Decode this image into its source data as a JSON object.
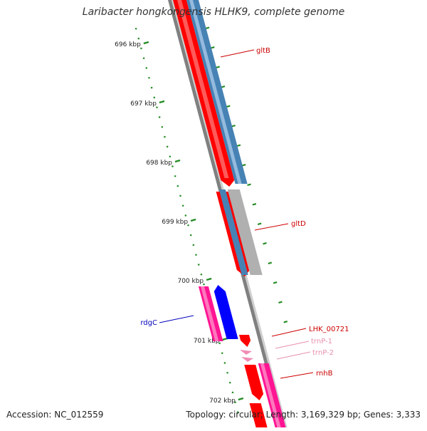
{
  "title": "Laribacter hongkongensis HLHK9, complete genome",
  "accession": "Accession: NC_012559",
  "summary": "Topology: circular; Length: 3,169,329 bp; Genes: 3,333",
  "ruler": {
    "labels": [
      "696 kbp",
      "697 kbp",
      "698 kbp",
      "699 kbp",
      "700 kbp",
      "701 kbp",
      "702 kbp"
    ]
  },
  "genes": [
    {
      "name": "gltB",
      "color": "#cc0000"
    },
    {
      "name": "gltD",
      "color": "#cc0000"
    },
    {
      "name": "rdgC",
      "color": "#0000bb"
    },
    {
      "name": "LHK_00721",
      "color": "#cc0000"
    },
    {
      "name": "trnP-1",
      "color": "#e890b0"
    },
    {
      "name": "trnP-2",
      "color": "#e890b0"
    },
    {
      "name": "rnhB",
      "color": "#cc0000"
    }
  ],
  "colors": {
    "cds_forward": "#ff0000",
    "cds_reverse": "#0000ff",
    "cog_steel": "#4682b4",
    "cog_gray": "#b0b0b0",
    "cog_pink": "#ff1493",
    "trna": "#f08cb4",
    "backbone": "#808080",
    "tick": "#228b22"
  }
}
